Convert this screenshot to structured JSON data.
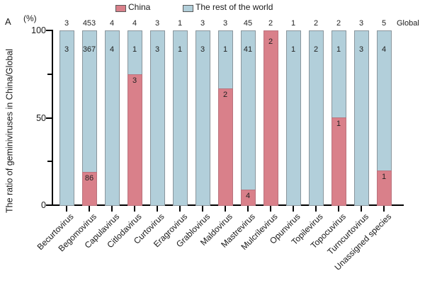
{
  "figure": {
    "panel_label": "A",
    "y_unit_label": "(%)",
    "y_axis_title": "The ratio of geminiviruses in China/Global",
    "global_label": "Global"
  },
  "legend": {
    "items": [
      {
        "label": "China",
        "color": "#D9808A"
      },
      {
        "label": "The rest of the world",
        "color": "#B2CFDA"
      }
    ]
  },
  "chart_data": {
    "type": "bar",
    "stacked": true,
    "normalized": "each bar scaled to 100% of the category's global total",
    "title": "",
    "xlabel": "",
    "ylabel": "The ratio of geminiviruses in China/Global",
    "y_unit": "(%)",
    "ylim": [
      0,
      100
    ],
    "grid": false,
    "legend_position": "top",
    "categories": [
      "Becurtovirus",
      "Begomovirus",
      "Capulavirus",
      "Citlodavirus",
      "Curtovirus",
      "Eragrovirus",
      "Grablovirus",
      "Maldovirus",
      "Mastrevirus",
      "Mulcrilevirus",
      "Opunvirus",
      "Topilevirus",
      "Topocuvirus",
      "Turncurtovirus",
      "Unassigned species"
    ],
    "series": [
      {
        "name": "China",
        "color": "#D9808A",
        "values": [
          0,
          86,
          0,
          3,
          0,
          0,
          0,
          2,
          4,
          2,
          0,
          0,
          1,
          0,
          1
        ]
      },
      {
        "name": "The rest of the world",
        "color": "#B2CFDA",
        "values": [
          3,
          367,
          4,
          1,
          3,
          1,
          3,
          1,
          41,
          0,
          1,
          2,
          1,
          3,
          4
        ]
      }
    ],
    "totals_global": [
      3,
      453,
      4,
      4,
      3,
      1,
      3,
      3,
      45,
      2,
      1,
      2,
      2,
      3,
      5
    ],
    "china_percent": [
      0,
      19.0,
      0,
      75.0,
      0,
      0,
      0,
      66.7,
      8.9,
      100.0,
      0,
      0,
      50.0,
      0,
      20.0
    ],
    "yticks": [
      {
        "value": 0,
        "label": "0"
      },
      {
        "value": 25,
        "label": ""
      },
      {
        "value": 50,
        "label": "50"
      },
      {
        "value": 75,
        "label": ""
      },
      {
        "value": 100,
        "label": "100"
      }
    ]
  }
}
